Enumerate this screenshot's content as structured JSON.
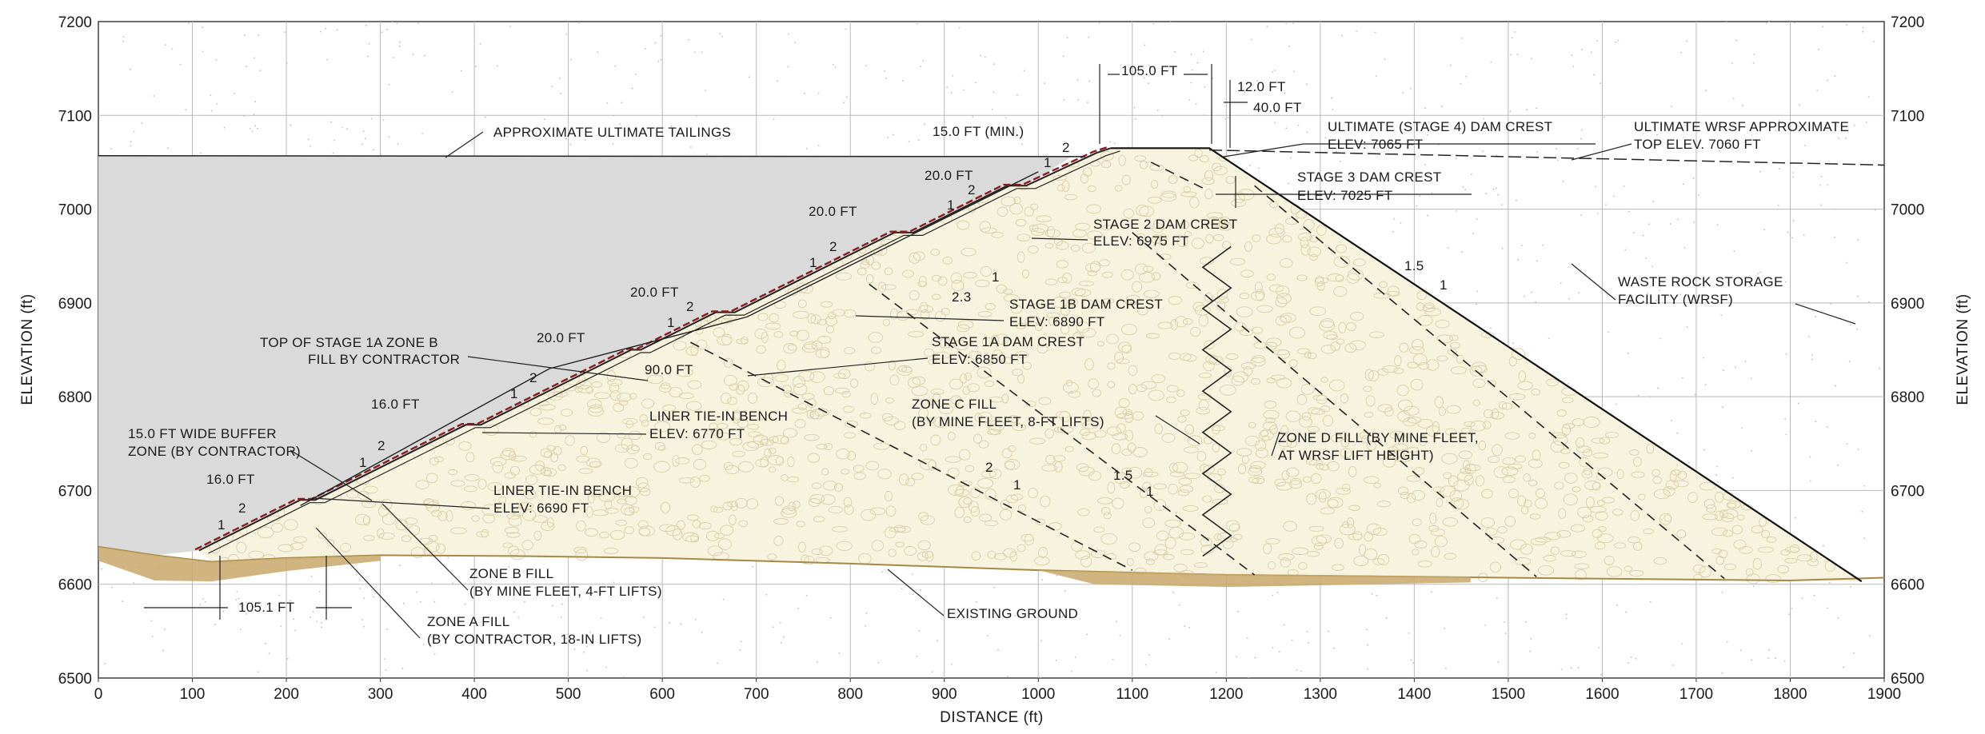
{
  "axes": {
    "x_title": "DISTANCE (ft)",
    "y_title_left": "ELEVATION (ft)",
    "y_title_right": "ELEVATION (ft)",
    "xlim": [
      0,
      1900
    ],
    "ylim": [
      6500,
      7200
    ],
    "x_ticks": [
      "0",
      "100",
      "200",
      "300",
      "400",
      "500",
      "600",
      "700",
      "800",
      "900",
      "1000",
      "1100",
      "1200",
      "1300",
      "1400",
      "1500",
      "1600",
      "1700",
      "1800",
      "1900"
    ],
    "y_ticks": [
      "6500",
      "6600",
      "6700",
      "6800",
      "6900",
      "7000",
      "7100",
      "7200"
    ]
  },
  "colors": {
    "tailings": "#dadada",
    "fill": "#f8f3df",
    "ground": "#c9a86a",
    "liner": "#8b1c1c",
    "grid": "#b9b9b9"
  },
  "labels": {
    "tailings": "APPROXIMATE ULTIMATE TAILINGS",
    "dim_105": "105.0 FT",
    "dim_12": "12.0 FT",
    "dim_40": "40.0 FT",
    "dim_15min": "15.0 FT (MIN.)",
    "stage4_l1": "ULTIMATE (STAGE 4) DAM CREST",
    "stage4_l2": "ELEV: 7065 FT",
    "wrsf_top_l1": "ULTIMATE WRSF APPROXIMATE",
    "wrsf_top_l2": "TOP ELEV. 7060 FT",
    "stage3_l1": "STAGE 3 DAM CREST",
    "stage3_l2": "ELEV: 7025 FT",
    "stage2_l1": "STAGE 2 DAM CREST",
    "stage2_l2": "ELEV: 6975 FT",
    "stage1b_l1": "STAGE 1B DAM CREST",
    "stage1b_l2": "ELEV: 6890 FT",
    "stage1a_l1": "STAGE 1A DAM CREST",
    "stage1a_l2": "ELEV: 6850 FT",
    "top1a_l1": "TOP OF STAGE 1A ZONE B",
    "top1a_l2": "FILL BY CONTRACTOR",
    "dim_20a": "20.0 FT",
    "dim_20b": "20.0 FT",
    "dim_20c": "20.0 FT",
    "dim_20d": "20.0 FT",
    "dim_16a": "16.0 FT",
    "dim_16b": "16.0 FT",
    "dim_90": "90.0 FT",
    "dim_1051": "105.1 FT",
    "liner6770_l1": "LINER TIE-IN BENCH",
    "liner6770_l2": "ELEV: 6770 FT",
    "liner6690_l1": "LINER TIE-IN BENCH",
    "liner6690_l2": "ELEV: 6690 FT",
    "buffer_l1": "15.0 FT WIDE BUFFER",
    "buffer_l2": "ZONE (BY CONTRACTOR)",
    "zoneb_l1": "ZONE B FILL",
    "zoneb_l2": "(BY MINE FLEET, 4-FT LIFTS)",
    "zonea_l1": "ZONE A FILL",
    "zonea_l2": "(BY CONTRACTOR, 18-IN LIFTS)",
    "zonec_l1": "ZONE C FILL",
    "zonec_l2": "(BY MINE FLEET, 8-FT LIFTS)",
    "zoned_l1": "ZONE D FILL (BY MINE FLEET,",
    "zoned_l2": "AT WRSF LIFT HEIGHT)",
    "wrsf_l1": "WASTE ROCK STORAGE",
    "wrsf_l2": "FACILITY (WRSF)",
    "existing": "EXISTING GROUND",
    "slope_15_a": "1.5",
    "slope_15_b": "1.5",
    "slope_2_zone": "2",
    "slope_23": "2.3",
    "slope_2_s1": "2",
    "slope_2_s2": "2",
    "slope_2_s3": "2",
    "slope_2_s4": "2",
    "slope_2_s5": "2",
    "slope_2_s6": "2",
    "slope_2_s7": "2",
    "one": "1"
  }
}
